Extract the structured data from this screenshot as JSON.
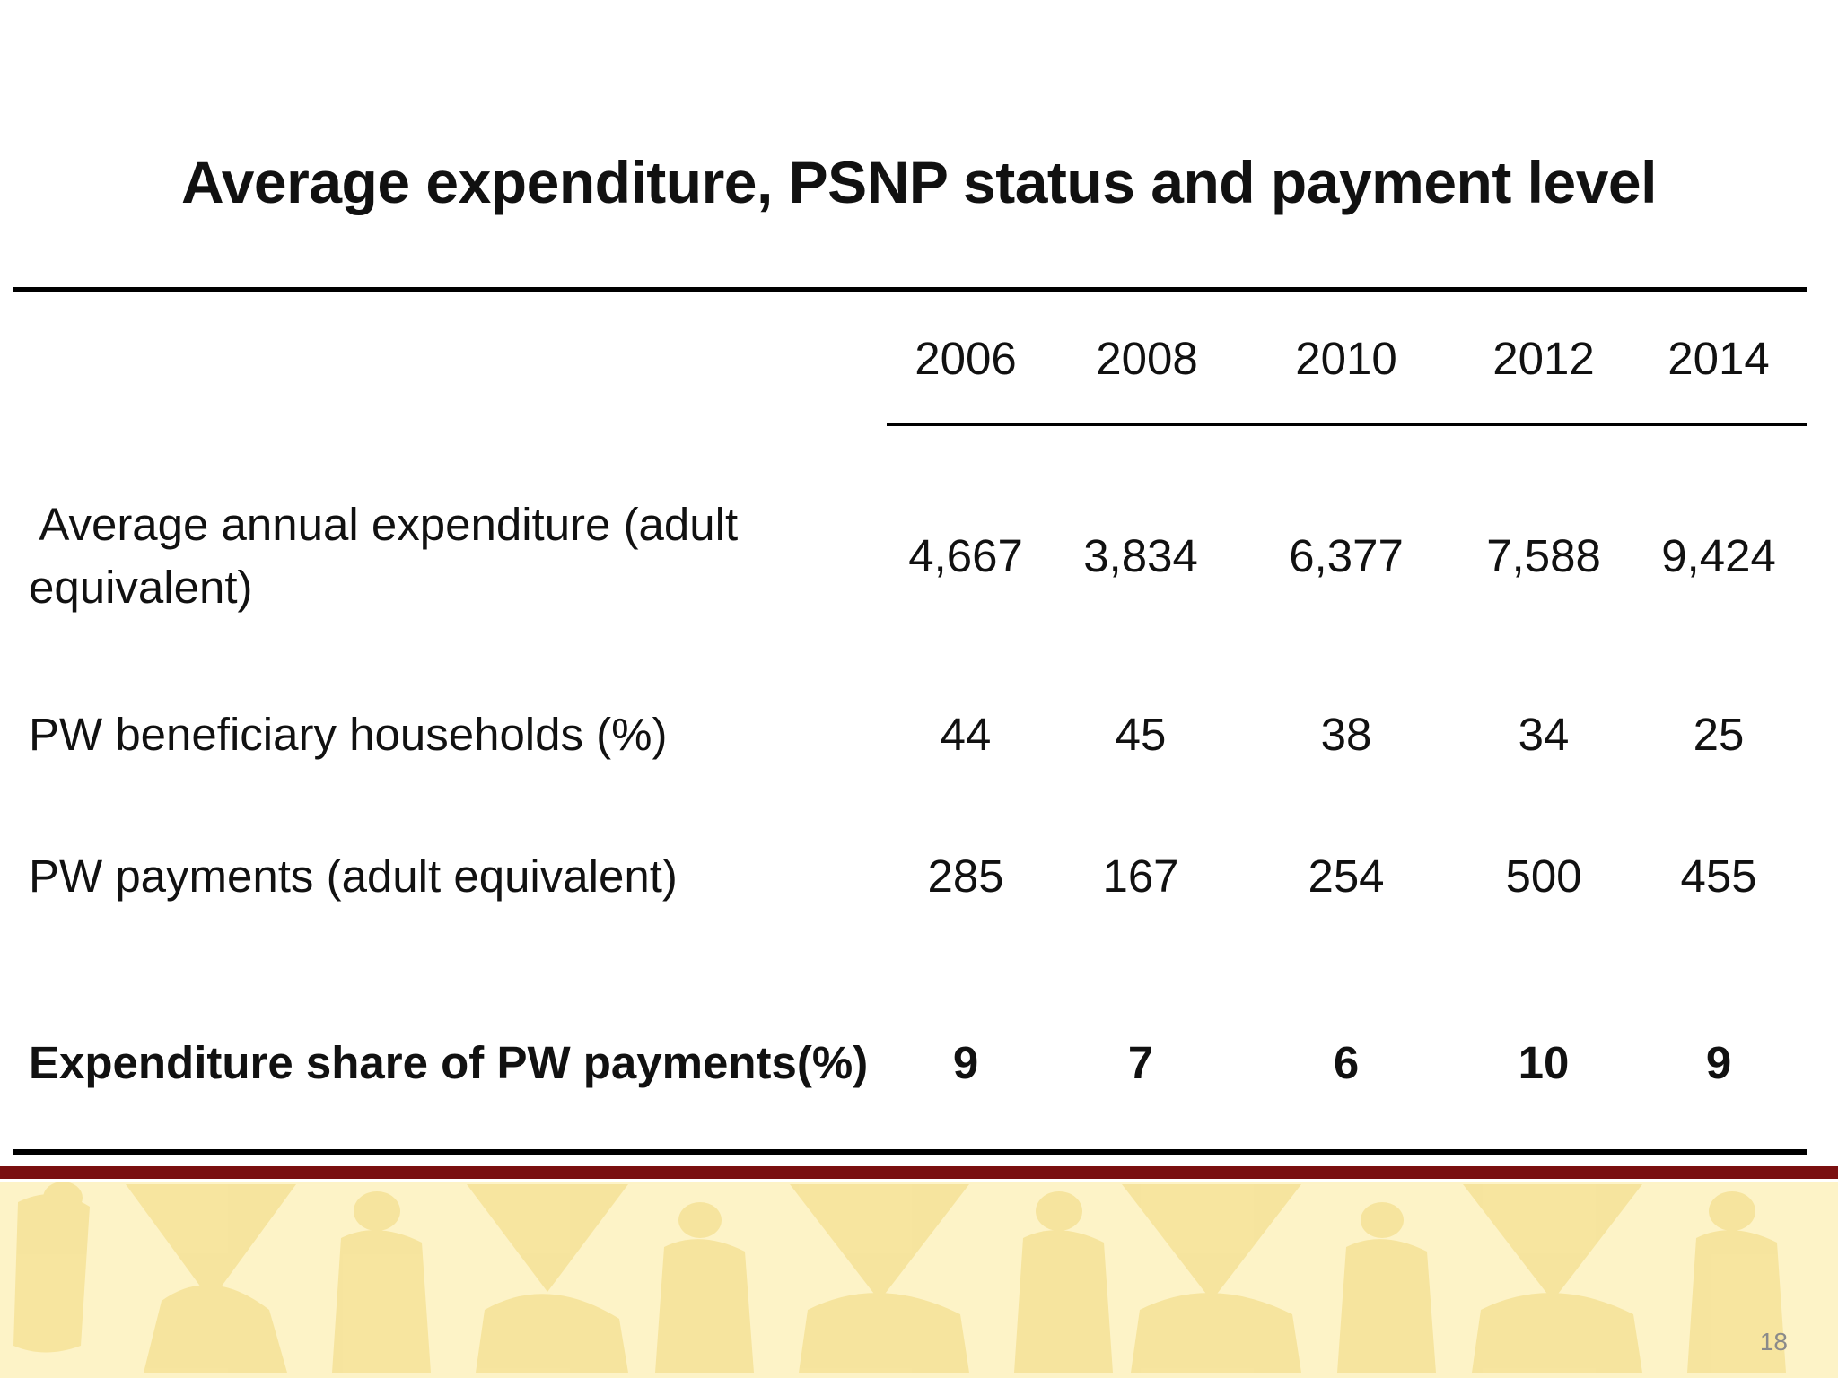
{
  "slide": {
    "title": "Average expenditure, PSNP status and payment level",
    "page_number": "18"
  },
  "table": {
    "years": [
      "2006",
      "2008",
      "2010",
      "2012",
      "2014"
    ],
    "rows": [
      {
        "label_line1": " Average annual expenditure (adult",
        "label_line2": "equivalent)",
        "values": [
          "4,667",
          "3,834",
          "6,377",
          "7,588",
          "9,424"
        ],
        "bold": false
      },
      {
        "label": "PW beneficiary households (%)",
        "values": [
          "44",
          "45",
          "38",
          "34",
          "25"
        ],
        "bold": false
      },
      {
        "label": "PW payments (adult equivalent)",
        "values": [
          "285",
          "167",
          "254",
          "500",
          "455"
        ],
        "bold": false
      },
      {
        "label": "Expenditure share of PW payments(%)",
        "values": [
          "9",
          "7",
          "6",
          "10",
          "9"
        ],
        "bold": true
      }
    ]
  },
  "colors": {
    "footer_bar": "#7a0f10",
    "footer_background": "#fdf3c7",
    "footer_pattern": "#f6e39a"
  },
  "icons": {
    "footer_pattern": "figures-pattern"
  }
}
